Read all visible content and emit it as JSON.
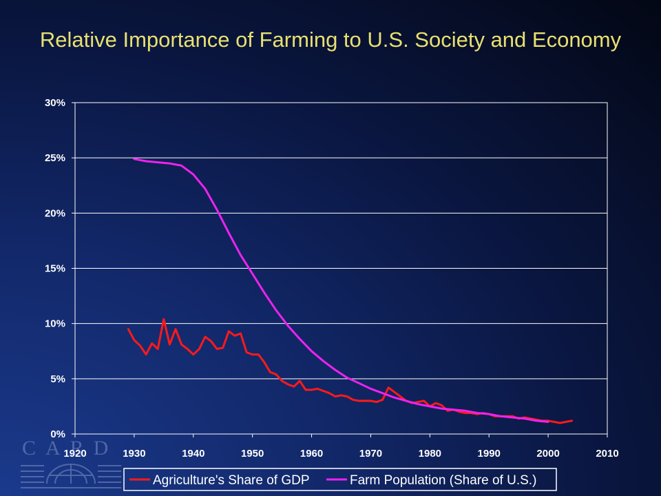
{
  "slide": {
    "title": "Relative Importance of Farming to U.S. Society and Economy"
  },
  "logo": {
    "text": "CARD"
  },
  "colors": {
    "title": "#e8e070",
    "series_gdp": "#ff1a1a",
    "series_pop": "#ee22ee",
    "gridline": "#ffffff",
    "plot_border": "#ffffff"
  },
  "chart_data": {
    "type": "line",
    "title": "",
    "xlabel": "",
    "ylabel": "",
    "xlim": [
      1920,
      2010
    ],
    "ylim": [
      0,
      0.3
    ],
    "x_ticks": [
      1920,
      1930,
      1940,
      1950,
      1960,
      1970,
      1980,
      1990,
      2000,
      2010
    ],
    "x_tick_labels": [
      "1920",
      "1930",
      "1940",
      "1950",
      "1960",
      "1970",
      "1980",
      "1990",
      "2000",
      "2010"
    ],
    "y_ticks": [
      0,
      0.05,
      0.1,
      0.15,
      0.2,
      0.25,
      0.3
    ],
    "y_tick_labels": [
      "0%",
      "5%",
      "10%",
      "15%",
      "20%",
      "25%",
      "30%"
    ],
    "grid": "horizontal",
    "legend_position": "bottom",
    "series": [
      {
        "name": "Agriculture's Share of GDP",
        "color": "#ff1a1a",
        "x": [
          1929,
          1930,
          1931,
          1932,
          1933,
          1934,
          1935,
          1936,
          1937,
          1938,
          1939,
          1940,
          1941,
          1942,
          1943,
          1944,
          1945,
          1946,
          1947,
          1948,
          1949,
          1950,
          1951,
          1952,
          1953,
          1954,
          1955,
          1956,
          1957,
          1958,
          1959,
          1960,
          1961,
          1962,
          1963,
          1964,
          1965,
          1966,
          1967,
          1968,
          1969,
          1970,
          1971,
          1972,
          1973,
          1974,
          1975,
          1976,
          1977,
          1978,
          1979,
          1980,
          1981,
          1982,
          1983,
          1984,
          1985,
          1986,
          1987,
          1988,
          1989,
          1990,
          1991,
          1992,
          1993,
          1994,
          1995,
          1996,
          1997,
          1998,
          1999,
          2000,
          2001,
          2002,
          2003,
          2004
        ],
        "values": [
          0.095,
          0.085,
          0.08,
          0.072,
          0.082,
          0.077,
          0.104,
          0.081,
          0.095,
          0.081,
          0.077,
          0.072,
          0.077,
          0.088,
          0.084,
          0.077,
          0.078,
          0.093,
          0.089,
          0.091,
          0.074,
          0.072,
          0.072,
          0.065,
          0.056,
          0.054,
          0.048,
          0.045,
          0.043,
          0.048,
          0.04,
          0.04,
          0.041,
          0.039,
          0.037,
          0.034,
          0.035,
          0.034,
          0.031,
          0.03,
          0.03,
          0.03,
          0.029,
          0.031,
          0.042,
          0.038,
          0.034,
          0.03,
          0.028,
          0.029,
          0.03,
          0.025,
          0.028,
          0.026,
          0.021,
          0.022,
          0.02,
          0.019,
          0.019,
          0.018,
          0.019,
          0.018,
          0.016,
          0.016,
          0.016,
          0.016,
          0.014,
          0.015,
          0.014,
          0.013,
          0.012,
          0.012,
          0.011,
          0.01,
          0.011,
          0.012
        ]
      },
      {
        "name": "Farm Population (Share of U.S.)",
        "color": "#ee22ee",
        "x": [
          1930,
          1932,
          1934,
          1936,
          1938,
          1940,
          1942,
          1944,
          1946,
          1948,
          1950,
          1952,
          1954,
          1956,
          1958,
          1960,
          1962,
          1964,
          1966,
          1968,
          1970,
          1972,
          1974,
          1976,
          1978,
          1980,
          1982,
          1984,
          1986,
          1988,
          1990,
          1992,
          1994,
          1996,
          1998,
          2000
        ],
        "values": [
          0.249,
          0.247,
          0.246,
          0.245,
          0.243,
          0.235,
          0.222,
          0.203,
          0.182,
          0.162,
          0.145,
          0.128,
          0.112,
          0.098,
          0.086,
          0.075,
          0.066,
          0.058,
          0.051,
          0.046,
          0.041,
          0.037,
          0.033,
          0.03,
          0.027,
          0.025,
          0.023,
          0.022,
          0.021,
          0.019,
          0.018,
          0.016,
          0.015,
          0.014,
          0.012,
          0.011
        ]
      }
    ]
  }
}
